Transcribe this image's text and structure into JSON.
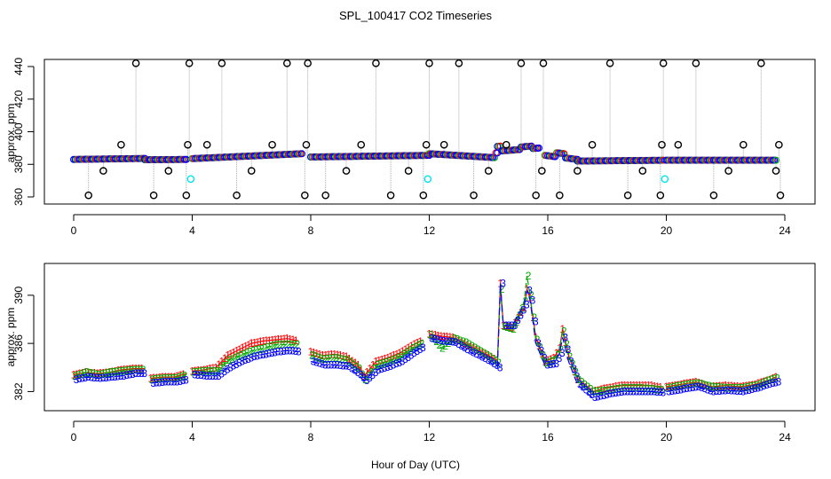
{
  "title": "SPL_100417  CO2 Timeseries",
  "xlabel": "Hour of Day (UTC)",
  "colors": {
    "black": "#000000",
    "red": "#ff0000",
    "green": "#00aa00",
    "blue": "#0000ff",
    "cyan": "#00e5ee",
    "grey": "#aaaaaa"
  },
  "chart_data": [
    {
      "type": "scatter",
      "panel": "top",
      "ylabel": "approx. ppm",
      "xlim": [
        0,
        24
      ],
      "ylim": [
        360,
        440
      ],
      "xticks": [
        "0",
        "4",
        "8",
        "12",
        "16",
        "20",
        "24"
      ],
      "yticks": [
        "360",
        "380",
        "400",
        "420",
        "440"
      ],
      "flag_points": {
        "x": [
          0.5,
          1.0,
          1.6,
          2.1,
          2.7,
          3.2,
          3.8,
          3.85,
          3.9,
          4.5,
          5.0,
          5.5,
          6.0,
          6.7,
          7.2,
          7.8,
          7.85,
          7.9,
          8.5,
          9.2,
          9.7,
          10.2,
          10.7,
          11.3,
          11.8,
          11.9,
          12.0,
          12.5,
          13.0,
          13.5,
          14.0,
          14.6,
          15.1,
          15.6,
          15.8,
          15.85,
          16.4,
          17.0,
          17.5,
          18.1,
          18.7,
          19.2,
          19.8,
          19.85,
          19.9,
          20.4,
          21.0,
          21.6,
          22.1,
          22.6,
          23.2,
          23.7,
          23.8,
          23.85
        ],
        "y": [
          361,
          376,
          392,
          442,
          361,
          376,
          361,
          392,
          442,
          392,
          442,
          361,
          376,
          392,
          442,
          361,
          392,
          442,
          361,
          376,
          392,
          442,
          361,
          376,
          361,
          392,
          442,
          392,
          442,
          361,
          376,
          392,
          442,
          361,
          376,
          442,
          361,
          376,
          392,
          442,
          361,
          376,
          361,
          392,
          442,
          392,
          442,
          361,
          376,
          392,
          442,
          376,
          392,
          361
        ]
      },
      "cyan_points": {
        "x": [
          3.95,
          11.95,
          19.95
        ],
        "y": [
          371,
          371,
          371
        ]
      },
      "baseline_segments": [
        {
          "x": [
            0,
            2.4
          ],
          "y": [
            383,
            383.6
          ]
        },
        {
          "x": [
            2.4,
            3.8
          ],
          "y": [
            382.8,
            383
          ]
        },
        {
          "x": [
            4.0,
            7.7
          ],
          "y": [
            383.5,
            386.5
          ]
        },
        {
          "x": [
            8.0,
            12.0
          ],
          "y": [
            384.5,
            385.5
          ]
        },
        {
          "x": [
            12.0,
            14.3
          ],
          "y": [
            386.5,
            384
          ]
        },
        {
          "x": [
            14.3,
            15.7
          ],
          "y": [
            388,
            390
          ]
        },
        {
          "x": [
            15.9,
            17.0
          ],
          "y": [
            385.5,
            383
          ]
        },
        {
          "x": [
            17.0,
            19.9
          ],
          "y": [
            382,
            382.5
          ]
        },
        {
          "x": [
            20.0,
            23.7
          ],
          "y": [
            382.5,
            382.5
          ]
        }
      ]
    },
    {
      "type": "line",
      "panel": "bottom",
      "ylabel": "approx. ppm",
      "xlim": [
        0,
        24
      ],
      "ylim": [
        381,
        392.2
      ],
      "xticks": [
        "0",
        "4",
        "8",
        "12",
        "16",
        "20",
        "24"
      ],
      "yticks": [
        "382",
        "386",
        "390"
      ],
      "series": [
        {
          "name": "1",
          "color": "#ff0000",
          "marker": "1",
          "x": [
            0.0,
            0.4,
            0.8,
            1.2,
            1.6,
            2.0,
            2.4,
            2.6,
            3.0,
            3.4,
            3.8,
            4.0,
            4.4,
            4.8,
            5.2,
            5.6,
            6.0,
            6.4,
            6.8,
            7.2,
            7.6,
            8.0,
            8.4,
            8.8,
            9.2,
            9.6,
            9.8,
            10.2,
            10.6,
            11.0,
            11.4,
            11.8,
            12.0,
            12.4,
            12.8,
            13.2,
            13.6,
            14.0,
            14.3,
            14.4,
            14.5,
            14.8,
            15.2,
            15.3,
            15.4,
            15.6,
            15.9,
            16.2,
            16.4,
            16.5,
            16.7,
            17.0,
            17.5,
            18.0,
            18.5,
            19.0,
            19.5,
            19.9,
            20.0,
            20.5,
            21.0,
            21.5,
            22.0,
            22.5,
            23.0,
            23.5,
            23.7
          ],
          "y": [
            383.4,
            383.6,
            383.5,
            383.6,
            383.8,
            383.9,
            383.9,
            383.1,
            383.2,
            383.2,
            383.5,
            383.7,
            383.8,
            384.0,
            385.0,
            385.5,
            386.0,
            386.2,
            386.3,
            386.4,
            386.2,
            385.3,
            385.0,
            385.1,
            384.9,
            384.2,
            383.3,
            384.5,
            384.8,
            385.2,
            385.8,
            386.3,
            386.8,
            386.6,
            386.5,
            386.0,
            385.5,
            385.0,
            384.6,
            391.0,
            387.5,
            387.3,
            389.0,
            390.5,
            389.8,
            386.5,
            384.5,
            384.8,
            385.6,
            387.2,
            385.0,
            383.0,
            382.0,
            382.3,
            382.5,
            382.5,
            382.5,
            382.3,
            382.4,
            382.6,
            382.8,
            382.4,
            382.5,
            382.4,
            382.6,
            383.0,
            383.2
          ]
        },
        {
          "name": "2",
          "color": "#00aa00",
          "marker": "2",
          "x": [
            0.0,
            0.4,
            0.8,
            1.2,
            1.6,
            2.0,
            2.4,
            2.6,
            3.0,
            3.4,
            3.8,
            4.0,
            4.4,
            4.8,
            5.2,
            5.6,
            6.0,
            6.4,
            6.8,
            7.2,
            7.6,
            8.0,
            8.4,
            8.8,
            9.2,
            9.6,
            9.8,
            10.2,
            10.6,
            11.0,
            11.4,
            11.8,
            12.0,
            12.4,
            12.8,
            13.2,
            13.6,
            14.0,
            14.3,
            14.4,
            14.5,
            14.8,
            15.2,
            15.3,
            15.4,
            15.6,
            15.9,
            16.2,
            16.4,
            16.5,
            16.7,
            17.0,
            17.5,
            18.0,
            18.5,
            19.0,
            19.5,
            19.9,
            20.0,
            20.5,
            21.0,
            21.5,
            22.0,
            22.5,
            23.0,
            23.5,
            23.7
          ],
          "y": [
            383.3,
            383.6,
            383.4,
            383.6,
            383.7,
            383.8,
            383.8,
            383.0,
            383.1,
            383.1,
            383.4,
            383.6,
            383.7,
            383.7,
            384.6,
            385.0,
            385.4,
            385.6,
            385.9,
            385.9,
            385.9,
            385.0,
            384.7,
            384.8,
            384.6,
            383.9,
            383.0,
            384.2,
            384.5,
            384.9,
            385.6,
            386.1,
            386.7,
            385.6,
            386.4,
            386.1,
            385.5,
            384.9,
            384.4,
            390.5,
            387.4,
            387.2,
            389.5,
            391.6,
            390.0,
            386.3,
            384.4,
            384.6,
            385.5,
            387.0,
            384.9,
            383.0,
            382.0,
            382.1,
            382.3,
            382.3,
            382.2,
            382.1,
            382.3,
            382.5,
            382.7,
            382.4,
            382.3,
            382.3,
            382.5,
            383.0,
            383.1
          ]
        },
        {
          "name": "3",
          "color": "#0000ff",
          "marker": "3",
          "x": [
            0.0,
            0.4,
            0.8,
            1.2,
            1.6,
            2.0,
            2.4,
            2.6,
            3.0,
            3.4,
            3.8,
            4.0,
            4.4,
            4.8,
            5.2,
            5.6,
            6.0,
            6.4,
            6.8,
            7.2,
            7.6,
            8.0,
            8.4,
            8.8,
            9.2,
            9.6,
            9.8,
            10.2,
            10.6,
            11.0,
            11.4,
            11.8,
            12.0,
            12.4,
            12.8,
            13.2,
            13.6,
            14.0,
            14.3,
            14.4,
            14.5,
            14.8,
            15.2,
            15.3,
            15.4,
            15.6,
            15.9,
            16.2,
            16.4,
            16.5,
            16.7,
            17.0,
            17.5,
            18.0,
            18.5,
            19.0,
            19.5,
            19.9,
            20.0,
            20.5,
            21.0,
            21.5,
            22.0,
            22.5,
            23.0,
            23.5,
            23.7
          ],
          "y": [
            383.0,
            383.2,
            383.1,
            383.2,
            383.3,
            383.5,
            383.5,
            382.7,
            382.8,
            382.8,
            383.0,
            383.4,
            383.3,
            383.3,
            384.0,
            384.5,
            384.9,
            385.1,
            385.3,
            385.4,
            385.3,
            384.5,
            384.2,
            384.2,
            384.1,
            383.4,
            382.9,
            383.8,
            384.1,
            384.5,
            385.2,
            385.8,
            386.4,
            386.2,
            386.1,
            385.5,
            385.0,
            384.5,
            384.0,
            391.0,
            387.5,
            387.5,
            389.2,
            390.4,
            389.6,
            386.0,
            384.2,
            384.3,
            385.2,
            386.5,
            384.5,
            382.6,
            381.5,
            381.8,
            382.0,
            382.0,
            382.0,
            381.9,
            382.0,
            382.2,
            382.4,
            382.0,
            382.1,
            382.0,
            382.3,
            382.7,
            382.8
          ]
        }
      ]
    }
  ]
}
